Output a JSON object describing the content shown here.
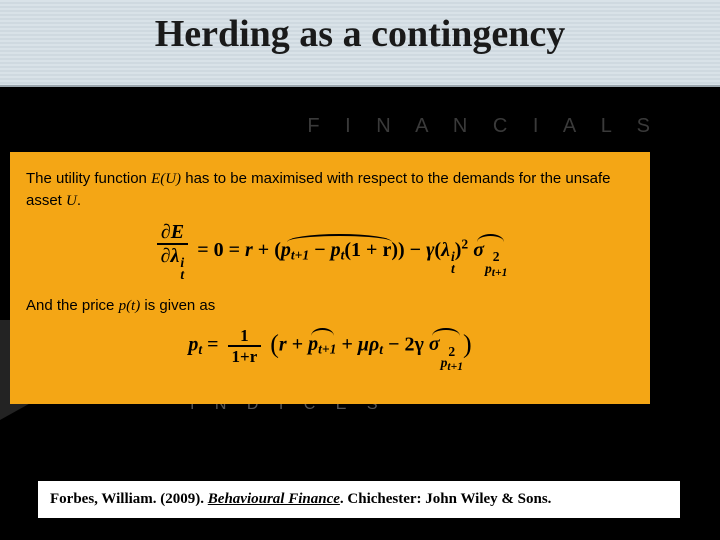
{
  "slide": {
    "title": "Herding as a contingency",
    "title_fontsize": 38,
    "title_color": "#1a1a1a",
    "top_band_colors": [
      "#d9e2e8",
      "#cfd9e0"
    ],
    "background_color": "#000000",
    "ghost_text_1": "F I N A N C I A L S",
    "ghost_text_2": "I N D I C E S",
    "ghost_color": "#3a3a3a"
  },
  "content_box": {
    "background_color": "#f4a615",
    "text_color": "#000000",
    "body_fontsize": 15,
    "equation_fontsize": 20,
    "intro_text_1_a": "The utility function ",
    "intro_text_1_var": "E(U)",
    "intro_text_1_b": " has to be maximised with respect to the demands for the unsafe asset ",
    "intro_text_1_var2": "U",
    "intro_text_1_c": ".",
    "intro_text_2_a": "And the price ",
    "intro_text_2_var": "p(t)",
    "intro_text_2_b": " is given as",
    "equation1": {
      "lhs_num": "∂E",
      "lhs_den_base": "∂λ",
      "lhs_den_sup": "i",
      "lhs_den_sub": "t",
      "eq_zero": " = 0 = ",
      "r": "r",
      "plus": " + ",
      "p_t1": "p",
      "p_t1_sub": "t+1",
      "minus": " − ",
      "p_t": "p",
      "p_t_sub": "t",
      "one_plus_r": "(1 + r)",
      "gamma": "γ",
      "lambda": "λ",
      "lambda_sup": "i",
      "lambda_sub": "t",
      "sq": "2",
      "sigma": "σ",
      "sigma_sup": "2",
      "sigma_sub_base": "p",
      "sigma_sub_sub": "t+1"
    },
    "equation2": {
      "lhs": "p",
      "lhs_sub": "t",
      "eq": " = ",
      "frac_num": "1",
      "frac_den": "1+r",
      "r": "r",
      "plus": " + ",
      "p_t1": "p",
      "p_t1_sub": "t+1",
      "mu": "μρ",
      "mu_sub": "t",
      "minus": " − ",
      "two_gamma": "2γ",
      "sigma": "σ",
      "sigma_sup": "2",
      "sigma_sub_base": "p",
      "sigma_sub_sub": "t+1"
    }
  },
  "reference": {
    "background_color": "#ffffff",
    "text_color": "#000000",
    "fontsize": 15,
    "author_year": "Forbes, William.  (2009).  ",
    "title_ital": "Behavioural Finance",
    "rest": ". Chichester: John Wiley & Sons."
  }
}
